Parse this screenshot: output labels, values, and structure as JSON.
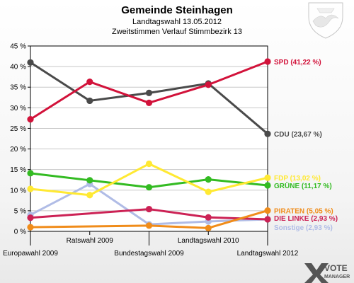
{
  "chart_data": {
    "type": "line",
    "title": "Gemeinde Steinhagen",
    "subtitle_lines": [
      "Landtagswahl 13.05.2012",
      "Zweitstimmen Verlauf Stimmbezirk 13"
    ],
    "categories": [
      "Europawahl 2009",
      "Ratswahl 2009",
      "Bundestagswahl 2009",
      "Landtagswahl 2010",
      "Landtagswahl 2012"
    ],
    "ylim": [
      0,
      45
    ],
    "yticks": [
      0,
      5,
      10,
      15,
      20,
      25,
      30,
      35,
      40,
      45
    ],
    "ytick_labels": [
      "0 %",
      "5 %",
      "10 %",
      "15 %",
      "20 %",
      "25 %",
      "30 %",
      "35 %",
      "40 %",
      "45 %"
    ],
    "grid": "horizontal",
    "series": [
      {
        "name": "SPD",
        "color": "#d2123a",
        "values": [
          27.2,
          36.3,
          31.2,
          35.6,
          41.22
        ],
        "end_label": "SPD (41,22 %)"
      },
      {
        "name": "CDU",
        "color": "#4a4a4a",
        "values": [
          41.0,
          31.7,
          33.6,
          35.9,
          23.67
        ],
        "end_label": "CDU (23,67 %)"
      },
      {
        "name": "FDP",
        "color": "#ffe933",
        "values": [
          10.3,
          8.8,
          16.4,
          9.6,
          13.02
        ],
        "end_label": "FDP (13,02 %)"
      },
      {
        "name": "GRÜNE",
        "color": "#33bb22",
        "values": [
          14.1,
          12.4,
          10.7,
          12.6,
          11.17
        ],
        "end_label": "GRÜNE (11,17 %)"
      },
      {
        "name": "PIRATEN",
        "color": "#f08c1a",
        "values": [
          1.0,
          null,
          1.4,
          0.8,
          5.05
        ],
        "end_label": "PIRATEN (5,05 %)"
      },
      {
        "name": "DIE LINKE",
        "color": "#cc2255",
        "values": [
          3.3,
          null,
          5.4,
          3.4,
          2.93
        ],
        "end_label": "DIE LINKE (2,93 %)"
      },
      {
        "name": "Sonstige",
        "color": "#b0bce6",
        "values": [
          4.0,
          11.5,
          1.7,
          2.4,
          2.93
        ],
        "end_label": "Sonstige (2,93 %)"
      }
    ]
  },
  "logo": {
    "line1": "VOTE",
    "line2": "MANAGER"
  },
  "colors": {
    "grid": "#c8c8c8",
    "axis": "#000000"
  }
}
